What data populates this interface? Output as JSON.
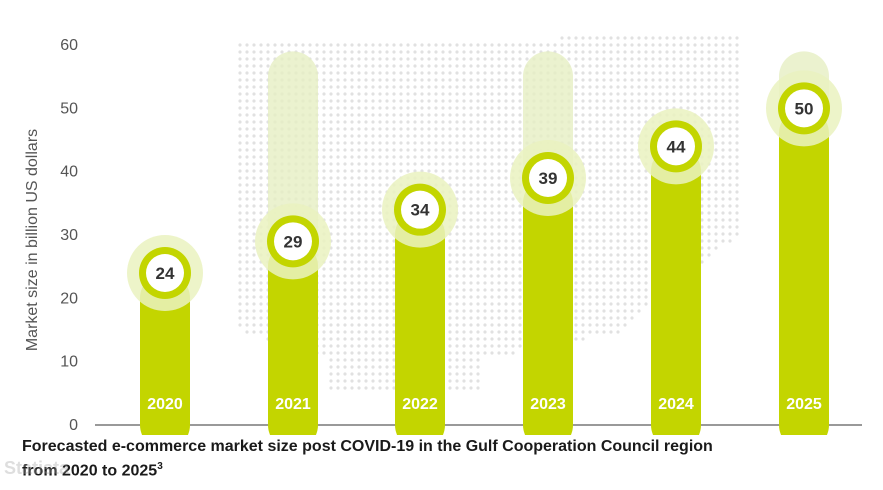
{
  "chart_data": {
    "type": "bar",
    "ylabel": "Market size in billion US dollars",
    "ylim": [
      0,
      60
    ],
    "yticks": [
      0,
      10,
      20,
      30,
      40,
      50,
      60
    ],
    "categories": [
      "2020",
      "2021",
      "2022",
      "2023",
      "2024",
      "2025"
    ],
    "values": [
      24,
      29,
      34,
      39,
      44,
      50
    ],
    "colors": {
      "bar": "#c3d500",
      "halo": "#eaf2bf",
      "ghost": "#e6efc3",
      "label_text": "#333333",
      "map_dots": "#e1e1e1"
    },
    "grid": false,
    "legend": "none"
  },
  "caption": {
    "line1": "Forecasted e-commerce market size post COVID-19 in the Gulf Cooperation Council region",
    "line2": "from 2020 to 2025",
    "footnote": "3"
  },
  "watermark": "Statista"
}
